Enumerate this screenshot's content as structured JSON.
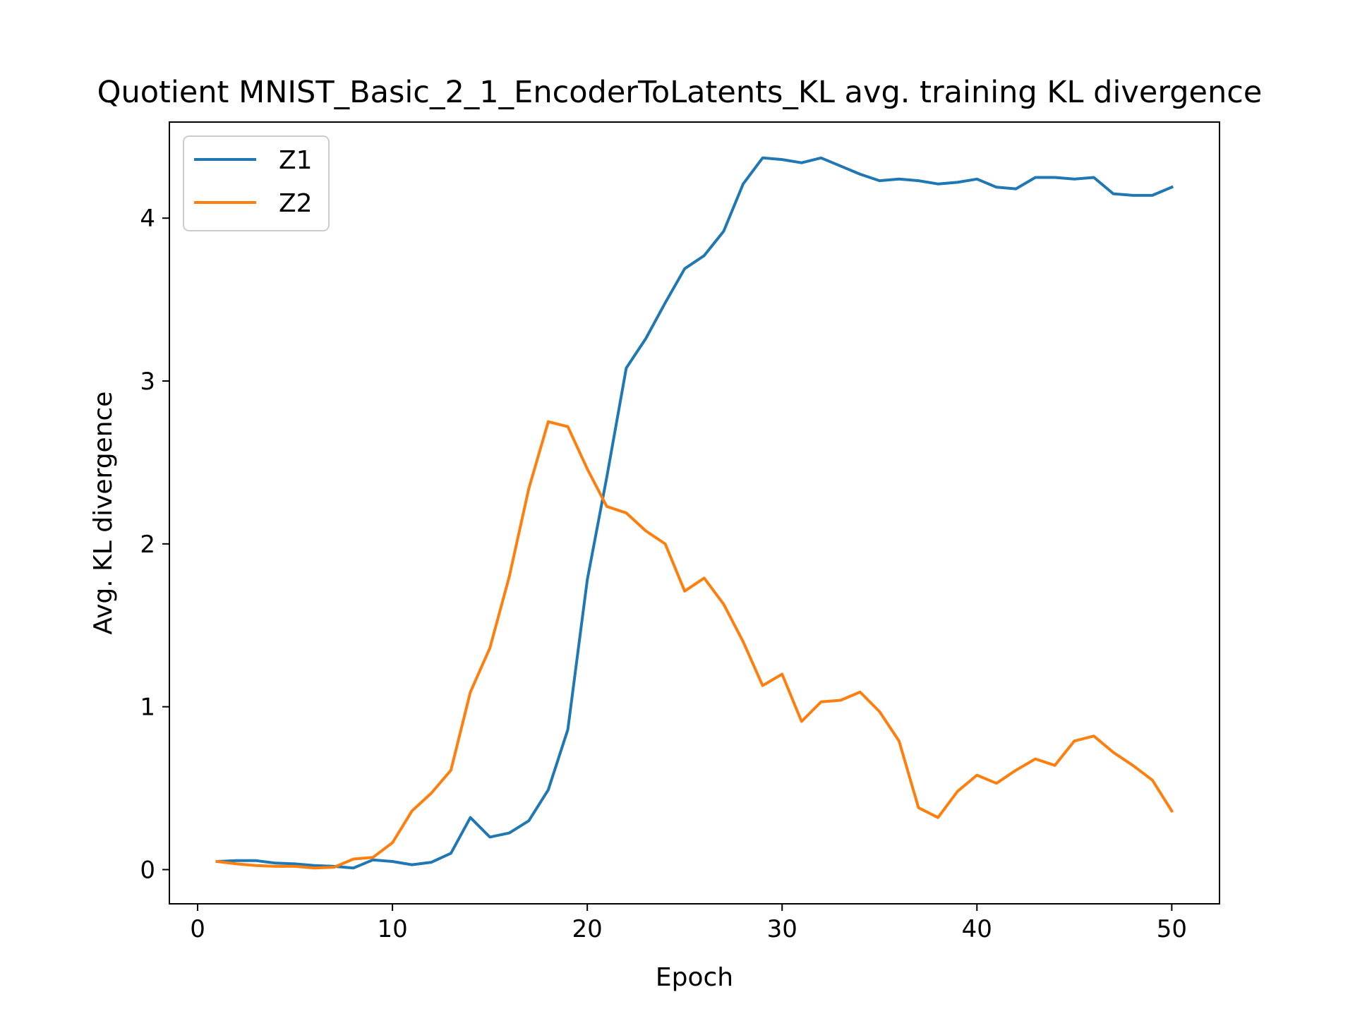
{
  "chart_data": {
    "type": "line",
    "title": "Quotient MNIST_Basic_2_1_EncoderToLatents_KL avg. training KL divergence",
    "xlabel": "Epoch",
    "ylabel": "Avg. KL divergence",
    "xlim": [
      -1.45,
      52.45
    ],
    "ylim": [
      -0.21,
      4.59
    ],
    "xticks": [
      0,
      10,
      20,
      30,
      40,
      50
    ],
    "yticks": [
      0,
      1,
      2,
      3,
      4
    ],
    "grid": false,
    "legend": "upper left",
    "x": [
      1,
      2,
      3,
      4,
      5,
      6,
      7,
      8,
      9,
      10,
      11,
      12,
      13,
      14,
      15,
      16,
      17,
      18,
      19,
      20,
      21,
      22,
      23,
      24,
      25,
      26,
      27,
      28,
      29,
      30,
      31,
      32,
      33,
      34,
      35,
      36,
      37,
      38,
      39,
      40,
      41,
      42,
      43,
      44,
      45,
      46,
      47,
      48,
      49,
      50
    ],
    "series": [
      {
        "name": "Z1",
        "color": "#1f77b4",
        "values": [
          0.05,
          0.055,
          0.055,
          0.04,
          0.035,
          0.025,
          0.02,
          0.01,
          0.06,
          0.05,
          0.03,
          0.045,
          0.1,
          0.32,
          0.2,
          0.225,
          0.3,
          0.49,
          0.86,
          1.78,
          2.41,
          3.08,
          3.26,
          3.48,
          3.69,
          3.77,
          3.92,
          4.21,
          4.37,
          4.36,
          4.34,
          4.37,
          4.32,
          4.27,
          4.23,
          4.24,
          4.23,
          4.21,
          4.22,
          4.24,
          4.19,
          4.18,
          4.25,
          4.25,
          4.24,
          4.25,
          4.15,
          4.14,
          4.14,
          4.19
        ]
      },
      {
        "name": "Z2",
        "color": "#ff7f0e",
        "values": [
          0.05,
          0.035,
          0.025,
          0.02,
          0.02,
          0.01,
          0.015,
          0.065,
          0.075,
          0.165,
          0.36,
          0.47,
          0.61,
          1.09,
          1.36,
          1.8,
          2.34,
          2.75,
          2.72,
          2.46,
          2.23,
          2.19,
          2.08,
          2.0,
          1.71,
          1.79,
          1.63,
          1.4,
          1.13,
          1.2,
          0.91,
          1.03,
          1.04,
          1.09,
          0.97,
          0.79,
          0.38,
          0.32,
          0.48,
          0.58,
          0.53,
          0.61,
          0.68,
          0.64,
          0.79,
          0.82,
          0.72,
          0.64,
          0.55,
          0.36
        ]
      }
    ]
  }
}
